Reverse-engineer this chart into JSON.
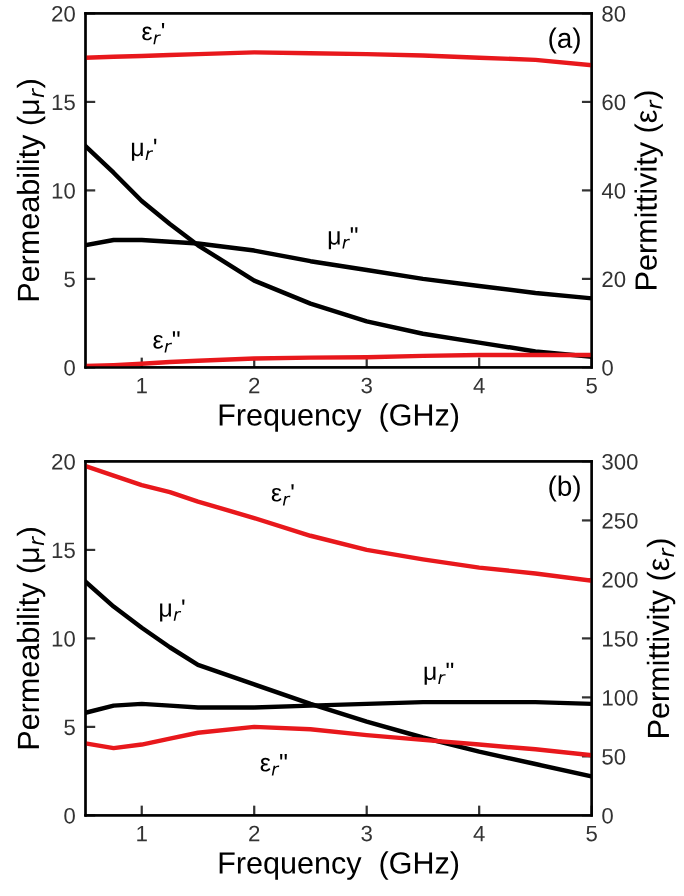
{
  "chart_data": [
    {
      "type": "line",
      "xlabel": "Frequency  (GHz)",
      "ylabel": "Permeability (μ$_{r}$)",
      "y2label": "Permittivity (ε$_{r}$)",
      "annotations": [
        "(a)"
      ],
      "x": [
        0.5,
        0.75,
        1,
        1.25,
        1.5,
        2,
        2.5,
        3,
        3.5,
        4,
        4.5,
        5
      ],
      "xlim": [
        0.5,
        5
      ],
      "xticks": [
        1,
        2,
        3,
        4,
        5
      ],
      "ylim": [
        0,
        20
      ],
      "yticks": [
        0,
        5,
        10,
        15,
        20
      ],
      "y2lim": [
        0,
        80
      ],
      "y2ticks": [
        0,
        20,
        40,
        60,
        80
      ],
      "grid": false,
      "legend": false,
      "series": [
        {
          "name": "ε$_{r}$'",
          "color": "#e8181c",
          "axis": "y2",
          "values": [
            70,
            70.2,
            70.4,
            70.6,
            70.8,
            71.2,
            71,
            70.8,
            70.5,
            70,
            69.5,
            68.3
          ]
        },
        {
          "name": "μ$_{r}$'",
          "color": "#000000",
          "values": [
            12.5,
            11,
            9.4,
            8.1,
            6.9,
            4.9,
            3.6,
            2.6,
            1.9,
            1.4,
            0.9,
            0.6
          ]
        },
        {
          "name": "μ$_{r}$\"",
          "color": "#000000",
          "values": [
            6.9,
            7.2,
            7.2,
            7.1,
            7.0,
            6.6,
            6.0,
            5.5,
            5.0,
            4.6,
            4.2,
            3.9
          ]
        },
        {
          "name": "ε$_{r}$\"",
          "color": "#e8181c",
          "axis": "y2",
          "values": [
            0.3,
            0.5,
            0.8,
            1.2,
            1.5,
            2,
            2.2,
            2.3,
            2.6,
            2.8,
            2.8,
            2.8
          ]
        }
      ]
    },
    {
      "type": "line",
      "xlabel": "Frequency  (GHz)",
      "ylabel": "Permeability (μ$_{r}$)",
      "y2label": "Permittivity (ε$_{r}$)",
      "annotations": [
        "(b)"
      ],
      "x": [
        0.5,
        0.75,
        1,
        1.25,
        1.5,
        2,
        2.5,
        3,
        3.5,
        4,
        4.5,
        5
      ],
      "xlim": [
        0.5,
        5
      ],
      "xticks": [
        1,
        2,
        3,
        4,
        5
      ],
      "ylim": [
        0,
        20
      ],
      "yticks": [
        0,
        5,
        10,
        15,
        20
      ],
      "y2lim": [
        0,
        300
      ],
      "y2ticks": [
        0,
        50,
        100,
        150,
        200,
        250,
        300
      ],
      "grid": false,
      "legend": false,
      "series": [
        {
          "name": "ε$_{r}$'",
          "color": "#e8181c",
          "axis": "y2",
          "values": [
            296,
            288,
            280,
            274,
            266,
            252,
            237,
            225,
            217,
            210,
            205,
            199
          ]
        },
        {
          "name": "μ$_{r}$'",
          "color": "#000000",
          "values": [
            13.2,
            11.8,
            10.6,
            9.5,
            8.5,
            7.4,
            6.3,
            5.3,
            4.4,
            3.6,
            2.9,
            2.2
          ]
        },
        {
          "name": "μ$_{r}$\"",
          "color": "#000000",
          "values": [
            5.8,
            6.2,
            6.3,
            6.2,
            6.1,
            6.1,
            6.2,
            6.3,
            6.4,
            6.4,
            6.4,
            6.3
          ]
        },
        {
          "name": "ε$_{r}$\"",
          "color": "#e8181c",
          "axis": "y2",
          "values": [
            61,
            57,
            60,
            65,
            70,
            75,
            73,
            68,
            64,
            60,
            56,
            51
          ]
        }
      ]
    }
  ]
}
